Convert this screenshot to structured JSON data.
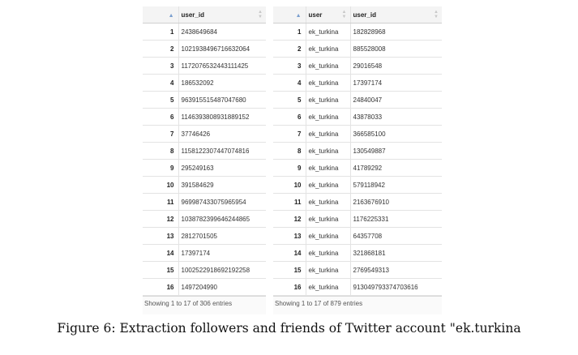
{
  "left_table": {
    "columns": [
      "",
      "user_id"
    ],
    "rows": [
      [
        "1",
        "2438649684"
      ],
      [
        "2",
        "1021938496716632064"
      ],
      [
        "3",
        "1172076532443111425"
      ],
      [
        "4",
        "186532092"
      ],
      [
        "5",
        "963915515487047680"
      ],
      [
        "6",
        "1146393808931889152"
      ],
      [
        "7",
        "37746426"
      ],
      [
        "8",
        "1158122307447074816"
      ],
      [
        "9",
        "295249163"
      ],
      [
        "10",
        "391584629"
      ],
      [
        "11",
        "969987433075965954"
      ],
      [
        "12",
        "1038782399646244865"
      ],
      [
        "13",
        "2812701505"
      ],
      [
        "14",
        "17397174"
      ],
      [
        "15",
        "1002522918692192258"
      ],
      [
        "16",
        "1497204990"
      ]
    ],
    "footer": "Showing 1 to 17 of 306 entries"
  },
  "right_table": {
    "columns": [
      "",
      "user",
      "user_id"
    ],
    "rows": [
      [
        "1",
        "ek_turkina",
        "182828968"
      ],
      [
        "2",
        "ek_turkina",
        "885528008"
      ],
      [
        "3",
        "ek_turkina",
        "29016548"
      ],
      [
        "4",
        "ek_turkina",
        "17397174"
      ],
      [
        "5",
        "ek_turkina",
        "24840047"
      ],
      [
        "6",
        "ek_turkina",
        "43878033"
      ],
      [
        "7",
        "ek_turkina",
        "366585100"
      ],
      [
        "8",
        "ek_turkina",
        "130549887"
      ],
      [
        "9",
        "ek_turkina",
        "41789292"
      ],
      [
        "10",
        "ek_turkina",
        "579118942"
      ],
      [
        "11",
        "ek_turkina",
        "2163676910"
      ],
      [
        "12",
        "ek_turkina",
        "1176225331"
      ],
      [
        "13",
        "ek_turkina",
        "64357708"
      ],
      [
        "14",
        "ek_turkina",
        "321868181"
      ],
      [
        "15",
        "ek_turkina",
        "2769549313"
      ],
      [
        "16",
        "ek_turkina",
        "913049793374703616"
      ]
    ],
    "footer": "Showing 1 to 17 of 879 entries"
  },
  "caption": "Figure 6: Extraction followers and friends of Twitter account \"ek.turkina"
}
